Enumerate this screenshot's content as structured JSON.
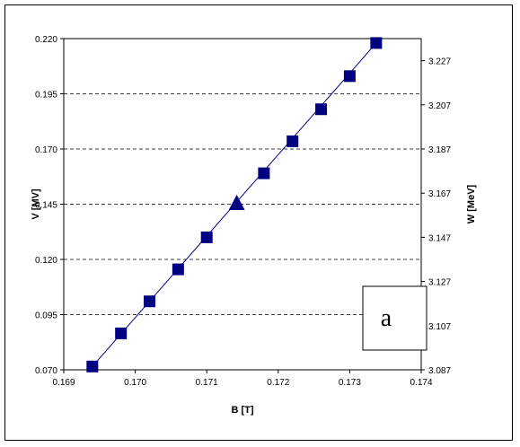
{
  "chart_data": {
    "type": "scatter",
    "xlabel": "B [T]",
    "ylabel": "V [MV]",
    "y2label": "W [MeV]",
    "panel_label": "a",
    "xlim": [
      0.169,
      0.174
    ],
    "ylim": [
      0.07,
      0.22
    ],
    "y2lim": [
      3.087,
      3.237
    ],
    "x_ticks": [
      "0.169",
      "0.170",
      "0.171",
      "0.172",
      "0.173",
      "0.174"
    ],
    "y_ticks": [
      "0.070",
      "0.095",
      "0.120",
      "0.145",
      "0.170",
      "0.195",
      "0.220"
    ],
    "y2_ticks": [
      "3.087",
      "3.107",
      "3.127",
      "3.147",
      "3.167",
      "3.187",
      "3.207",
      "3.227"
    ],
    "gridlines_y": [
      0.095,
      0.12,
      0.145,
      0.17,
      0.195,
      0.22
    ],
    "series": [
      {
        "marker": "square",
        "x": [
          0.1694,
          0.1698,
          0.1702,
          0.1706,
          0.171,
          0.1718,
          0.1722,
          0.1726,
          0.173,
          0.17337
        ],
        "y": [
          0.0715,
          0.0865,
          0.101,
          0.1155,
          0.13,
          0.159,
          0.1735,
          0.188,
          0.203,
          0.218
        ]
      },
      {
        "marker": "triangle",
        "x": [
          0.17142
        ],
        "y": [
          0.145
        ]
      }
    ],
    "line_points": {
      "x": [
        0.1694,
        0.17337
      ],
      "y": [
        0.0715,
        0.218
      ]
    },
    "colors": {
      "marker": "#000080",
      "line": "#000080",
      "grid": "#000000"
    }
  }
}
